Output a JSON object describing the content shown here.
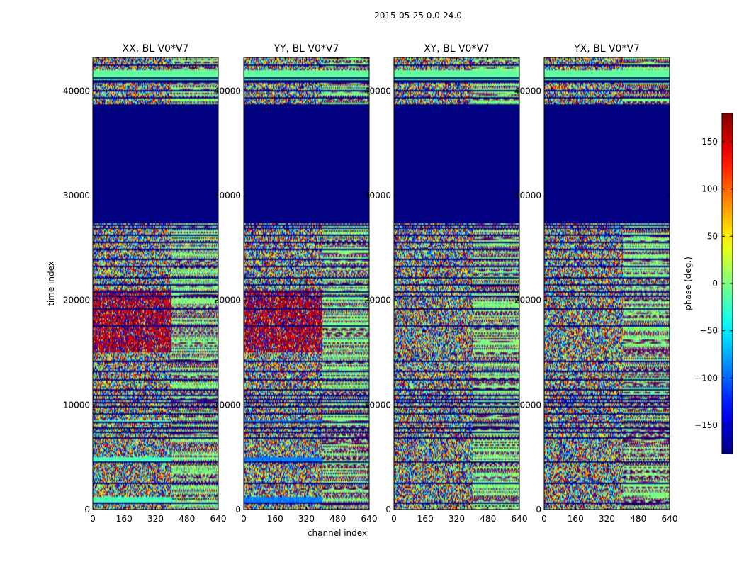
{
  "suptitle": "2015-05-25 0.0-24.0",
  "chart_data": {
    "type": "heatmap",
    "panels": [
      {
        "title": "XX, BL V0*V7"
      },
      {
        "title": "YY, BL V0*V7"
      },
      {
        "title": "XY, BL V0*V7"
      },
      {
        "title": "YX, BL V0*V7"
      }
    ],
    "xlabel": "channel index",
    "ylabel": "time index",
    "xlim": [
      0,
      640
    ],
    "ylim": [
      0,
      43200
    ],
    "xticks": [
      0,
      160,
      320,
      480,
      640
    ],
    "yticks": [
      0,
      10000,
      20000,
      30000,
      40000
    ],
    "colorbar": {
      "label": "phase (deg.)",
      "range": [
        -180,
        180
      ],
      "ticks": [
        -150,
        -100,
        -50,
        0,
        50,
        100,
        150
      ],
      "colormap": "jet"
    },
    "masked_block_time_range": [
      27500,
      38700
    ],
    "masked_block_value": -180,
    "structure": {
      "channel_split": 400,
      "uniform_band_time_range": [
        41000,
        42000
      ],
      "uniform_band_value": -10,
      "high_phase_time_range": [
        15000,
        21000
      ],
      "high_phase_value_XX_YY": 150,
      "low_phase_bands_XX": [
        [
          4500,
          5000
        ],
        [
          8200,
          8500
        ],
        [
          600,
          1200
        ]
      ],
      "low_phase_bands_YY": [
        [
          4500,
          5000
        ],
        [
          8200,
          8500
        ],
        [
          600,
          1200
        ]
      ],
      "low_phase_value_YY": -90,
      "low_phase_value_XX": -20,
      "flagged_time_rows": [
        600,
        2500,
        4500,
        6800,
        7400,
        7800,
        8300,
        9200,
        9800,
        10200,
        10500,
        10900,
        11500,
        12400,
        13200,
        14200,
        17500,
        19100,
        20400,
        20800,
        21500,
        22200,
        23200,
        23900,
        24800,
        25500,
        26200,
        26900,
        27100,
        27400,
        39300,
        40000,
        40900,
        41300,
        42500
      ]
    }
  }
}
